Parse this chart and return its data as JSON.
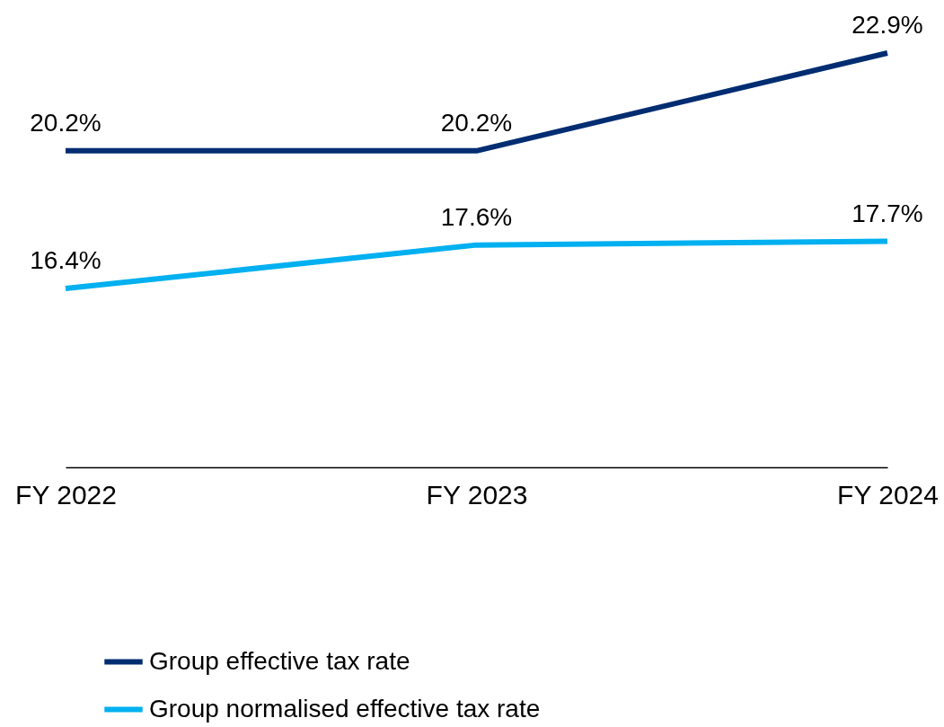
{
  "chart_data": {
    "type": "line",
    "categories": [
      "FY 2022",
      "FY 2023",
      "FY 2024"
    ],
    "series": [
      {
        "name": "Group effective tax rate",
        "color": "#002d72",
        "values": [
          20.2,
          20.2,
          22.9
        ],
        "value_labels": [
          "20.2%",
          "20.2%",
          "22.9%"
        ]
      },
      {
        "name": "Group normalised effective tax rate",
        "color": "#00b0f0",
        "values": [
          16.4,
          17.6,
          17.7
        ],
        "value_labels": [
          "16.4%",
          "17.6%",
          "17.7%"
        ]
      }
    ],
    "tick_labels": "x",
    "legend": "bottom",
    "line_style": "solid"
  }
}
